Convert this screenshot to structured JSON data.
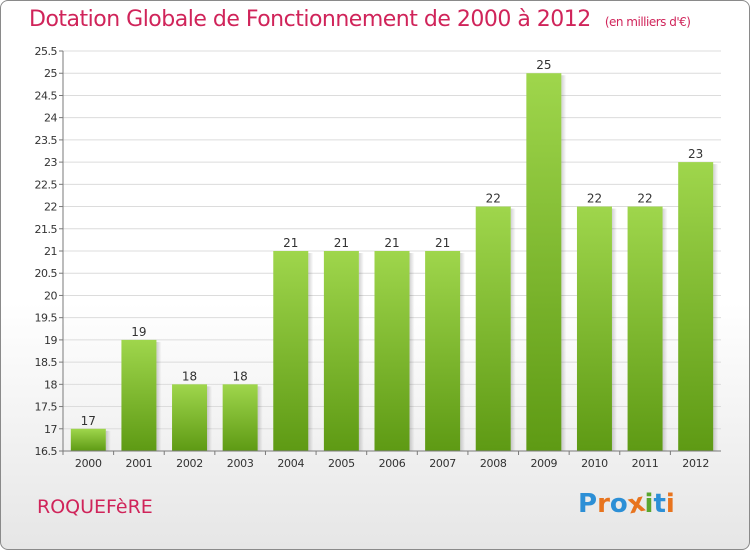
{
  "header": {
    "title": "Dotation Globale de Fonctionnement de 2000 à 2012",
    "subtitle": "(en milliers d'€)"
  },
  "footer": {
    "commune": "ROQUEFèRE",
    "logo_text": "Proxiti"
  },
  "colors": {
    "title": "#d0245a",
    "bar_light": "#9fd64c",
    "bar_dark": "#5e9a14",
    "grid": "#dcdcdc",
    "axis": "#7a7a7a",
    "logo_letters": [
      "#2c8fd6",
      "#e8741e",
      "#2c8fd6",
      "#e8741e",
      "#5aa62e",
      "#2c8fd6",
      "#e8741e"
    ]
  },
  "chart_data": {
    "type": "bar",
    "title": "Dotation Globale de Fonctionnement de 2000 à 2012",
    "subtitle": "(en milliers d'€)",
    "xlabel": "",
    "ylabel": "",
    "categories": [
      "2000",
      "2001",
      "2002",
      "2003",
      "2004",
      "2005",
      "2006",
      "2007",
      "2008",
      "2009",
      "2010",
      "2011",
      "2012"
    ],
    "values": [
      17,
      19,
      18,
      18,
      21,
      21,
      21,
      21,
      22,
      25,
      22,
      22,
      23
    ],
    "data_labels": [
      "17",
      "19",
      "18",
      "18",
      "21",
      "21",
      "21",
      "21",
      "22",
      "25",
      "22",
      "22",
      "23"
    ],
    "ylim": [
      16.5,
      25.5
    ],
    "yticks": [
      16.5,
      17,
      17.5,
      18,
      18.5,
      19,
      19.5,
      20,
      20.5,
      21,
      21.5,
      22,
      22.5,
      23,
      23.5,
      24,
      24.5,
      25,
      25.5
    ],
    "ytick_labels": [
      "16.5",
      "17",
      "17.5",
      "18",
      "18.5",
      "19",
      "19.5",
      "20",
      "20.5",
      "21",
      "21.5",
      "22",
      "22.5",
      "23",
      "23.5",
      "24",
      "24.5",
      "25",
      "25.5"
    ],
    "grid": true,
    "legend": "none"
  }
}
